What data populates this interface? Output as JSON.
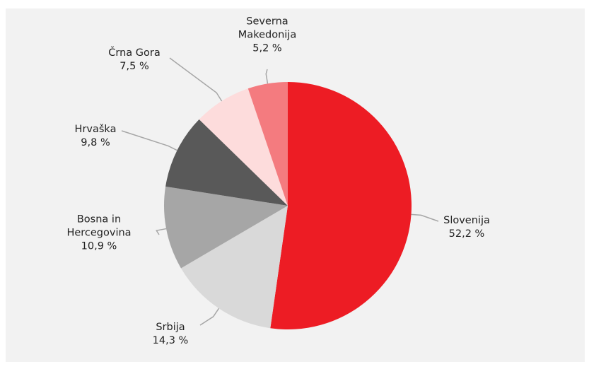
{
  "chart_data": {
    "type": "pie",
    "categories": [
      "Slovenija",
      "Srbija",
      "Bosna in\nHercegovina",
      "Hrvaška",
      "Črna Gora",
      "Severna\nMakedonija"
    ],
    "values": [
      52.2,
      14.3,
      10.9,
      9.8,
      7.5,
      5.2
    ],
    "value_labels": [
      "52,2 %",
      "14,3 %",
      "10,9 %",
      "9,8 %",
      "7,5 %",
      "5,2 %"
    ],
    "colors": [
      "#ed1c24",
      "#d9d9d9",
      "#a6a6a6",
      "#595959",
      "#fddcdc",
      "#f47b7f"
    ]
  }
}
